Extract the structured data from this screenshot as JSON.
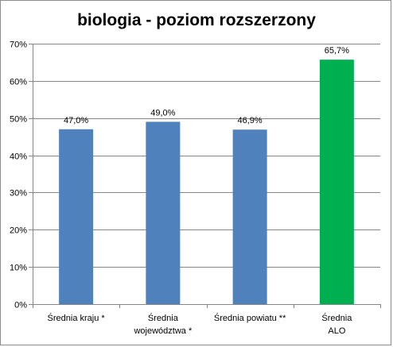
{
  "chart_data": {
    "type": "bar",
    "title": "biologia - poziom rozszerzony",
    "categories": [
      [
        "Średnia kraju *"
      ],
      [
        "Średnia",
        "województwa *"
      ],
      [
        "Średnia powiatu **"
      ],
      [
        "Średnia",
        "ALO"
      ]
    ],
    "values": [
      47.0,
      49.0,
      46.9,
      65.7
    ],
    "value_labels": [
      "47,0%",
      "49,0%",
      "46,9%",
      "65,7%"
    ],
    "bar_colors": [
      "#4f81bd",
      "#4f81bd",
      "#4f81bd",
      "#00b050"
    ],
    "ylim": [
      0,
      70
    ],
    "yticks": [
      0,
      10,
      20,
      30,
      40,
      50,
      60,
      70
    ],
    "ytick_labels": [
      "0%",
      "10%",
      "20%",
      "30%",
      "40%",
      "50%",
      "60%",
      "70%"
    ],
    "grid": true,
    "legend": "none"
  }
}
